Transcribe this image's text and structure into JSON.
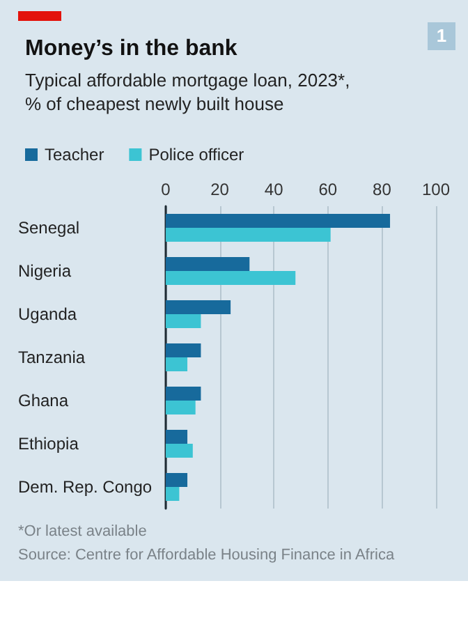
{
  "chart_data": {
    "type": "bar",
    "orientation": "horizontal",
    "title": "Money’s in the bank",
    "subtitle": "Typical affordable mortgage loan, 2023*,\n% of cheapest newly built house",
    "categories": [
      "Senegal",
      "Nigeria",
      "Uganda",
      "Tanzania",
      "Ghana",
      "Ethiopia",
      "Dem. Rep. Congo"
    ],
    "series": [
      {
        "name": "Teacher",
        "color": "#176a9c",
        "values": [
          83,
          31,
          24,
          13,
          13,
          8,
          8
        ]
      },
      {
        "name": "Police officer",
        "color": "#3cc4d3",
        "values": [
          61,
          48,
          13,
          8,
          11,
          10,
          5
        ]
      }
    ],
    "xlim": [
      0,
      100
    ],
    "xticks": [
      0,
      20,
      40,
      60,
      80,
      100
    ],
    "grid": "x",
    "legend": "top left",
    "annotations": [
      "1",
      "*Or latest available",
      "Source: Centre for Affordable Housing Finance in Africa"
    ]
  }
}
